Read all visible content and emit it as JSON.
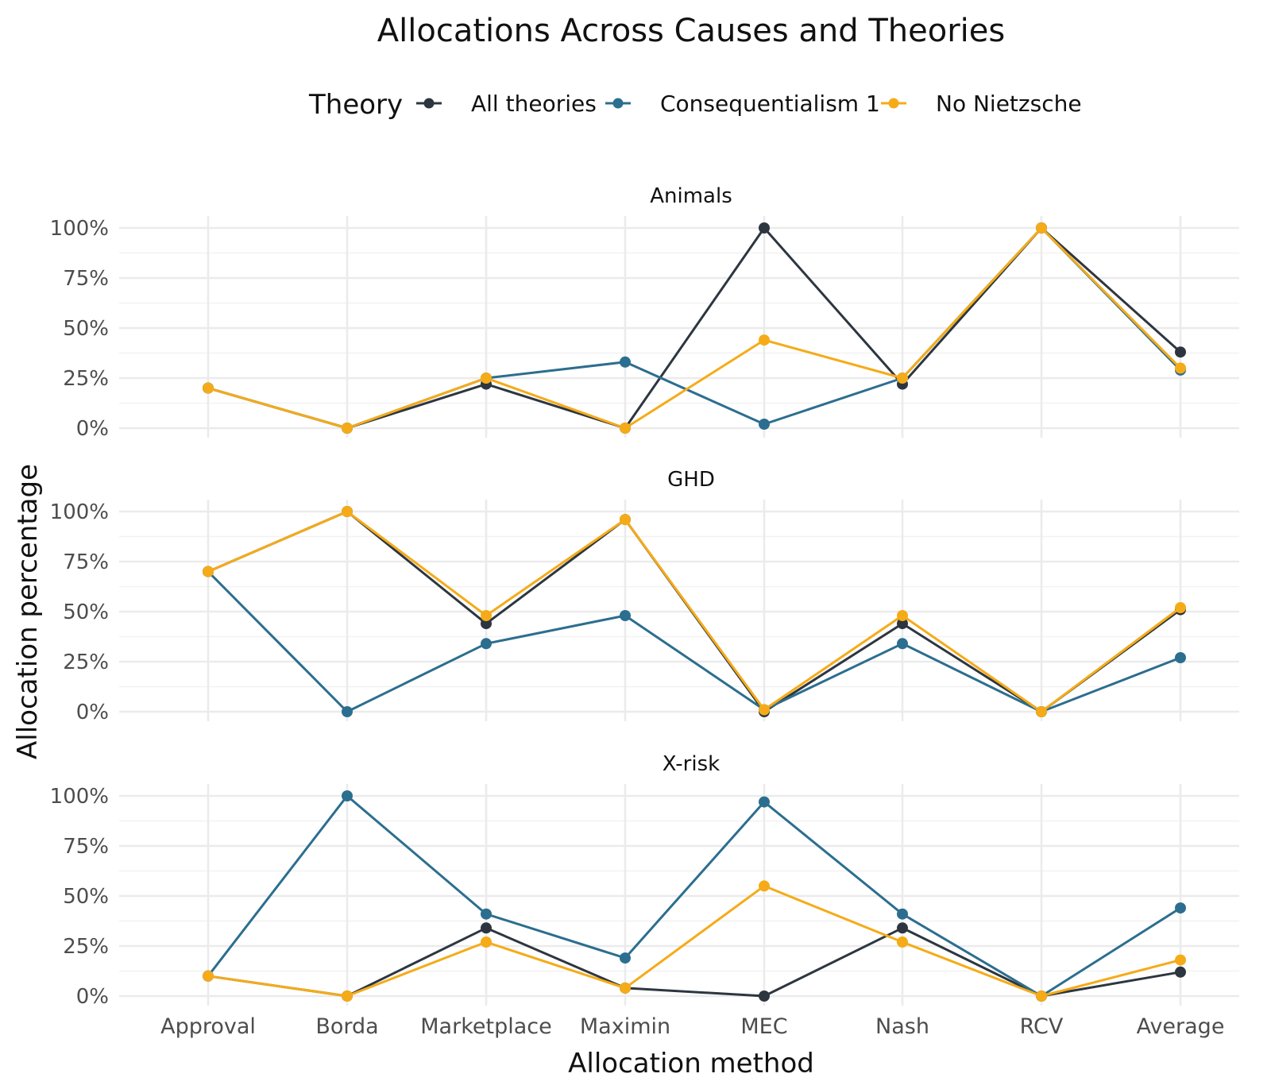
{
  "chart_data": {
    "type": "line",
    "title": "Allocations Across Causes and Theories",
    "xlabel": "Allocation method",
    "ylabel": "Allocation percentage",
    "legend": {
      "title": "Theory",
      "placement": "top"
    },
    "categories": [
      "Approval",
      "Borda",
      "Marketplace",
      "Maximin",
      "MEC",
      "Nash",
      "RCV",
      "Average"
    ],
    "yticks": [
      "0%",
      "25%",
      "50%",
      "75%",
      "100%"
    ],
    "ylim": [
      0,
      100
    ],
    "grid": true,
    "colors": {
      "All theories": "#2d3640",
      "Consequentialism 1": "#2c6e8f",
      "No Nietzsche": "#f5ab18"
    },
    "facets": [
      {
        "name": "Animals",
        "series": [
          {
            "name": "All theories",
            "values": [
              20,
              0,
              22,
              0,
              100,
              22,
              100,
              38
            ]
          },
          {
            "name": "Consequentialism 1",
            "values": [
              20,
              0,
              25,
              33,
              2,
              25,
              100,
              29
            ]
          },
          {
            "name": "No Nietzsche",
            "values": [
              20,
              0,
              25,
              0,
              44,
              25,
              100,
              30
            ]
          }
        ]
      },
      {
        "name": "GHD",
        "series": [
          {
            "name": "All theories",
            "values": [
              70,
              100,
              44,
              96,
              0,
              44,
              0,
              51
            ]
          },
          {
            "name": "Consequentialism 1",
            "values": [
              70,
              0,
              34,
              48,
              1,
              34,
              0,
              27
            ]
          },
          {
            "name": "No Nietzsche",
            "values": [
              70,
              100,
              48,
              96,
              1,
              48,
              0,
              52
            ]
          }
        ]
      },
      {
        "name": "X-risk",
        "series": [
          {
            "name": "All theories",
            "values": [
              10,
              0,
              34,
              4,
              0,
              34,
              0,
              12
            ]
          },
          {
            "name": "Consequentialism 1",
            "values": [
              10,
              100,
              41,
              19,
              97,
              41,
              0,
              44
            ]
          },
          {
            "name": "No Nietzsche",
            "values": [
              10,
              0,
              27,
              4,
              55,
              27,
              0,
              18
            ]
          }
        ]
      }
    ]
  }
}
